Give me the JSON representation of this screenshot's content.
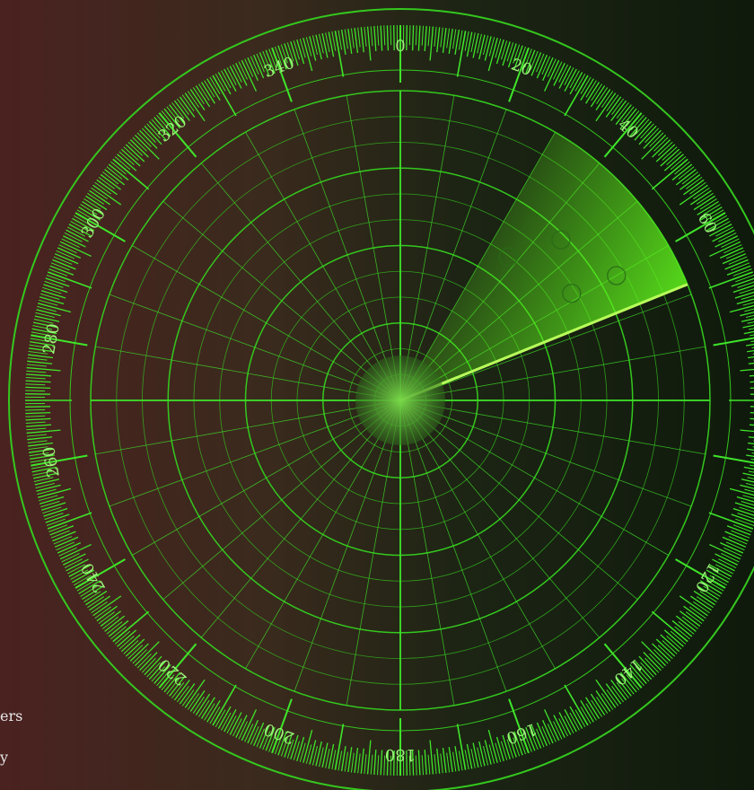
{
  "radar": {
    "bearing_labels": [
      "0",
      "20",
      "40",
      "60",
      "120",
      "140",
      "160",
      "180",
      "200",
      "220",
      "240",
      "260",
      "280",
      "300",
      "320",
      "340"
    ],
    "sweep_bearing": 68,
    "colors": {
      "grid": "#34c81e",
      "grid_bright": "#3fe52a",
      "label": "#9cf57a",
      "sweep": "#5ff21c"
    }
  },
  "captions": [
    "ers",
    "y"
  ]
}
